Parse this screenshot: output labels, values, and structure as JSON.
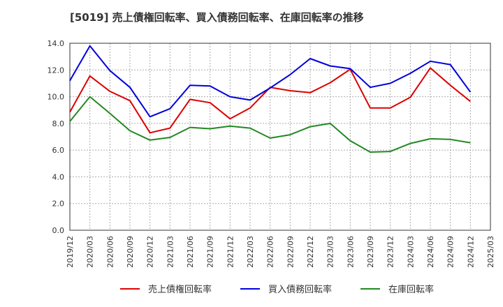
{
  "chart_data": {
    "type": "line",
    "title": "[5019]  売上債権回転率、買入債務回転率、在庫回転率の推移",
    "xlabel": "",
    "ylabel": "",
    "ylim": [
      0,
      14
    ],
    "yticks": [
      "0.0",
      "2.0",
      "4.0",
      "6.0",
      "8.0",
      "10.0",
      "12.0",
      "14.0"
    ],
    "grid": true,
    "legend_position": "bottom",
    "categories": [
      "2019/12",
      "2020/03",
      "2020/06",
      "2020/09",
      "2020/12",
      "2021/03",
      "2021/06",
      "2021/09",
      "2021/12",
      "2022/03",
      "2022/06",
      "2022/09",
      "2022/12",
      "2023/03",
      "2023/06",
      "2023/09",
      "2023/12",
      "2024/03",
      "2024/06",
      "2024/09",
      "2024/12",
      "2025/03"
    ],
    "series": [
      {
        "name": "売上債権回転率",
        "color": "#dd0000",
        "values": [
          8.85,
          11.55,
          10.4,
          9.7,
          7.3,
          7.65,
          9.8,
          9.55,
          8.35,
          9.15,
          10.7,
          10.45,
          10.3,
          11.05,
          12.05,
          9.15,
          9.15,
          9.95,
          12.15,
          10.85,
          9.65,
          null
        ]
      },
      {
        "name": "買入債務回転率",
        "color": "#0000dd",
        "values": [
          11.2,
          13.8,
          11.95,
          10.7,
          8.5,
          9.1,
          10.85,
          10.8,
          10.0,
          9.75,
          10.65,
          11.65,
          12.85,
          12.3,
          12.1,
          10.7,
          11.0,
          11.75,
          12.65,
          12.4,
          10.35,
          null
        ]
      },
      {
        "name": "在庫回転率",
        "color": "#228822",
        "values": [
          8.15,
          10.0,
          8.75,
          7.45,
          6.75,
          6.95,
          7.7,
          7.6,
          7.8,
          7.65,
          6.9,
          7.15,
          7.75,
          8.0,
          6.7,
          5.85,
          5.9,
          6.5,
          6.85,
          6.8,
          6.55,
          null
        ]
      }
    ]
  }
}
